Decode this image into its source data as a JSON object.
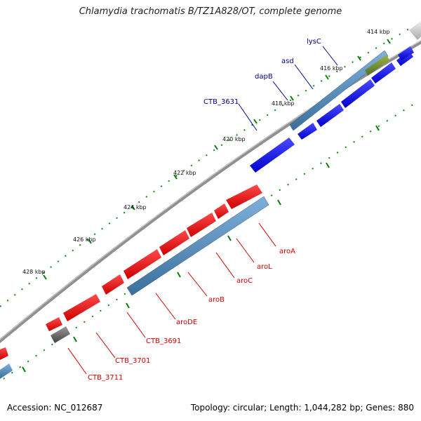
{
  "title": "Chlamydia trachomatis B/TZ1A828/OT, complete genome",
  "footer": {
    "accession": "Accession: NC_012687",
    "summary": "Topology: circular; Length: 1,044,282 bp; Genes: 880"
  },
  "colors": {
    "plus_gene": "#0000ee",
    "minus_gene": "#ee0000",
    "rna_plus": "#4682b4",
    "rna_minus": "#5b8fc4",
    "other": "#6b8e23",
    "backbone": "#888888",
    "tick": "#008000",
    "plus_label": "#00008b",
    "minus_label": "#cc0000"
  },
  "ticks": [
    "414 kbp",
    "416 kbp",
    "418 kbp",
    "420 kbp",
    "422 kbp",
    "424 kbp",
    "426 kbp",
    "428 kbp"
  ],
  "labels_plus": [
    "lysC",
    "asd",
    "dapB",
    "CTB_3631"
  ],
  "labels_minus": [
    "aroA",
    "aroL",
    "aroC",
    "aroB",
    "aroDE",
    "CTB_3691",
    "CTB_3701",
    "CTB_3711"
  ]
}
